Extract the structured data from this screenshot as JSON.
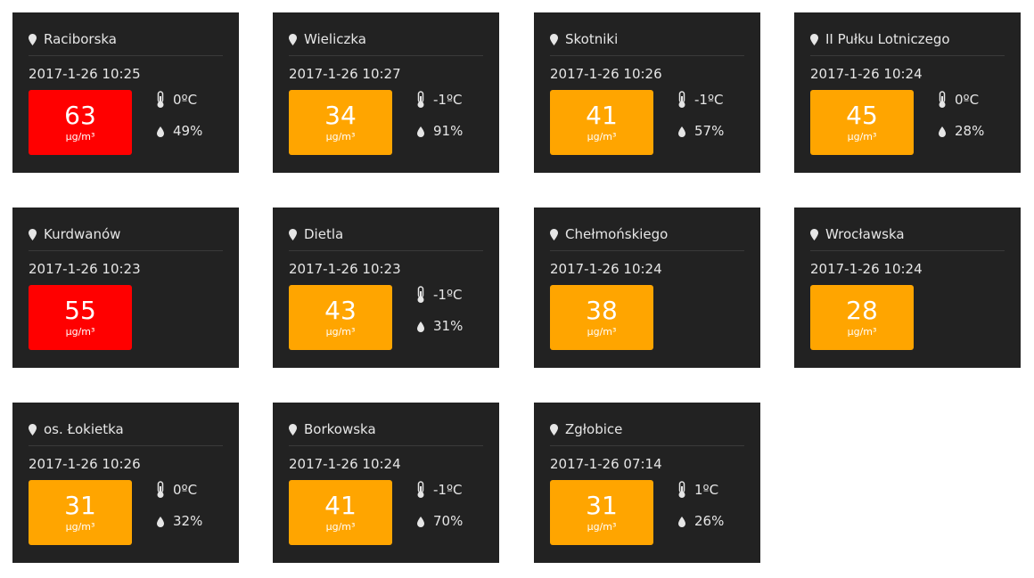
{
  "colors": {
    "card_bg": "#222222",
    "text": "#e6e6e6",
    "level_high": "#ff0000",
    "level_moderate": "#ffa500"
  },
  "icons": {
    "location": "map-pin-icon",
    "temperature": "thermometer-icon",
    "humidity": "droplet-icon"
  },
  "unit": "µg/m³",
  "stations": [
    {
      "name": "Raciborska",
      "timestamp": "2017-1-26 10:25",
      "pm": "63",
      "level_color": "#ff0000",
      "temperature": "0ºC",
      "humidity": "49%"
    },
    {
      "name": "Wieliczka",
      "timestamp": "2017-1-26 10:27",
      "pm": "34",
      "level_color": "#ffa500",
      "temperature": "-1ºC",
      "humidity": "91%"
    },
    {
      "name": "Skotniki",
      "timestamp": "2017-1-26 10:26",
      "pm": "41",
      "level_color": "#ffa500",
      "temperature": "-1ºC",
      "humidity": "57%"
    },
    {
      "name": "II Pułku Lotniczego",
      "timestamp": "2017-1-26 10:24",
      "pm": "45",
      "level_color": "#ffa500",
      "temperature": "0ºC",
      "humidity": "28%"
    },
    {
      "name": "Kurdwanów",
      "timestamp": "2017-1-26 10:23",
      "pm": "55",
      "level_color": "#ff0000",
      "temperature": "",
      "humidity": ""
    },
    {
      "name": "Dietla",
      "timestamp": "2017-1-26 10:23",
      "pm": "43",
      "level_color": "#ffa500",
      "temperature": "-1ºC",
      "humidity": "31%"
    },
    {
      "name": "Chełmońskiego",
      "timestamp": "2017-1-26 10:24",
      "pm": "38",
      "level_color": "#ffa500",
      "temperature": "",
      "humidity": ""
    },
    {
      "name": "Wrocławska",
      "timestamp": "2017-1-26 10:24",
      "pm": "28",
      "level_color": "#ffa500",
      "temperature": "",
      "humidity": ""
    },
    {
      "name": "os. Łokietka",
      "timestamp": "2017-1-26 10:26",
      "pm": "31",
      "level_color": "#ffa500",
      "temperature": "0ºC",
      "humidity": "32%"
    },
    {
      "name": "Borkowska",
      "timestamp": "2017-1-26 10:24",
      "pm": "41",
      "level_color": "#ffa500",
      "temperature": "-1ºC",
      "humidity": "70%"
    },
    {
      "name": "Zgłobice",
      "timestamp": "2017-1-26 07:14",
      "pm": "31",
      "level_color": "#ffa500",
      "temperature": "1ºC",
      "humidity": "26%"
    }
  ]
}
